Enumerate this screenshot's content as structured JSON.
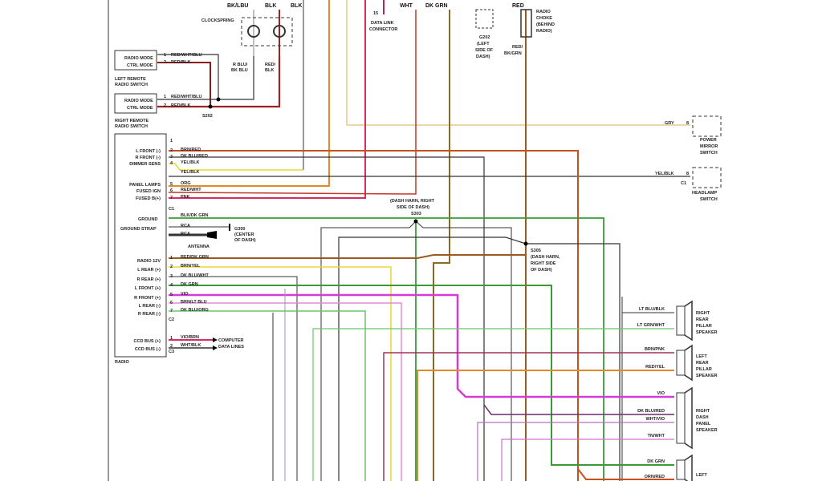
{
  "top": {
    "wire_a": "BK/LBU",
    "wire_b": "BLK",
    "wire_c": "BLK",
    "wire_wht": "WHT",
    "wire_dkgrn": "DK GRN",
    "wire_red": "RED",
    "clockspring": "CLOCKSPRING",
    "clock_left_wire": [
      "R BLU/",
      "BK BLU"
    ],
    "clock_right_wire": [
      "RED/",
      "BLK"
    ],
    "data_link_pin": "15",
    "data_link": [
      "DATA LINK",
      "CONNECTOR"
    ],
    "ground_g202": [
      "G202",
      "(LEFT",
      "SIDE OF",
      "DASH)"
    ],
    "choke_wire": [
      "RED/",
      "BK/GRN"
    ],
    "radio_choke": [
      "RADIO",
      "CHOKE",
      "(BEHIND",
      "RADIO)"
    ]
  },
  "remote_switches": {
    "left": {
      "pin1": "RADIO MODE",
      "pin2": "CTRL MODE",
      "title": [
        "LEFT REMOTE",
        "RADIO SWITCH"
      ]
    },
    "right": {
      "pin1": "RADIO MODE",
      "pin2": "CTRL MODE",
      "title": [
        "RIGHT REMOTE",
        "RADIO SWITCH"
      ]
    },
    "wire1": "RED/WHT/BLU",
    "wire2": "RED/BLK",
    "splice": "S202"
  },
  "radio": {
    "title": "RADIO",
    "c1_pins": [
      {
        "num": "1",
        "label": "",
        "wire": ""
      },
      {
        "num": "2",
        "label": "L FRONT (-)",
        "wire": "BRN/RED"
      },
      {
        "num": "3",
        "label": "R FRONT (-)",
        "wire": "DK BLU/RED"
      },
      {
        "num": "4",
        "label": "DIMMER SENS",
        "wire": "YEL/BLK"
      },
      {
        "num": "",
        "label": "",
        "wire": "YEL/BLK"
      },
      {
        "num": "5",
        "label": "PANEL LAMPS",
        "wire": "ORG"
      },
      {
        "num": "6",
        "label": "FUSED IGN",
        "wire": "RED/WHT"
      },
      {
        "num": "7",
        "label": "FUSED B(+)",
        "wire": "PNK"
      }
    ],
    "c1": "C1",
    "ground": {
      "label": "GROUND",
      "wire": "BLK/DK GRN"
    },
    "ground_strap": {
      "label": "GROUND STRAP",
      "wire1": "RCA",
      "wire2": "RCA",
      "ground": [
        "G300",
        "(CENTER",
        "OF DASH)"
      ],
      "antenna": "ANTENNA"
    },
    "c2_pins": [
      {
        "num": "1",
        "label": "RADIO 12V",
        "wire": "RED/DK GRN"
      },
      {
        "num": "2",
        "label": "L REAR (+)",
        "wire": "BRN/YEL"
      },
      {
        "num": "3",
        "label": "R REAR (+)",
        "wire": "DK BLU/WHT"
      },
      {
        "num": "4",
        "label": "L FRONT (+)",
        "wire": "DK GRN"
      },
      {
        "num": "5",
        "label": "R FRONT (+)",
        "wire": "VIO"
      },
      {
        "num": "6",
        "label": "L REAR (-)",
        "wire": "BRN/LT BLU"
      },
      {
        "num": "7",
        "label": "R REAR (-)",
        "wire": "DK BLU/ORG"
      }
    ],
    "c2": "C2",
    "c3_pins": [
      {
        "num": "1",
        "label": "CCD BUS (+)",
        "wire": "VIO/BRN"
      },
      {
        "num": "2",
        "label": "CCD BUS (-)",
        "wire": "WHT/BLK"
      }
    ],
    "c3": "C3",
    "computer": [
      "COMPUTER",
      "DATA LINES"
    ]
  },
  "right": {
    "gry": "GRY",
    "mirror_pin": "8",
    "power_mirror": [
      "POWER",
      "MIRROR",
      "SWITCH"
    ],
    "yel_blk": "YEL/BLK",
    "headlamp_pin": "8",
    "headlamp_conn": "C1",
    "headlamp": [
      "HEADLAMP",
      "SWITCH"
    ],
    "s303": [
      "(DASH HARN, RIGHT",
      "SIDE OF DASH)",
      "S303"
    ],
    "s305": [
      "S305",
      "(DASH HARN,",
      "RIGHT SIDE",
      "OF DASH)"
    ]
  },
  "speakers": [
    {
      "wires": [
        "LT BLU/BLK",
        "LT GRN/WHT"
      ],
      "name": [
        "RIGHT",
        "REAR",
        "PILLAR",
        "SPEAKER"
      ]
    },
    {
      "wires": [
        "BRN/PNK",
        "RED/YEL"
      ],
      "name": [
        "LEFT",
        "REAR",
        "PILLAR",
        "SPEAKER"
      ]
    },
    {
      "wires": [
        "VIO",
        "DK BLU/RED",
        "WHT/VIO",
        "TN/WHT"
      ],
      "name": [
        "RIGHT",
        "DASH",
        "PANEL",
        "SPEAKER"
      ]
    },
    {
      "wires": [
        "DK GRN",
        "ORN/RED"
      ],
      "name": [
        "LEFT"
      ]
    }
  ]
}
